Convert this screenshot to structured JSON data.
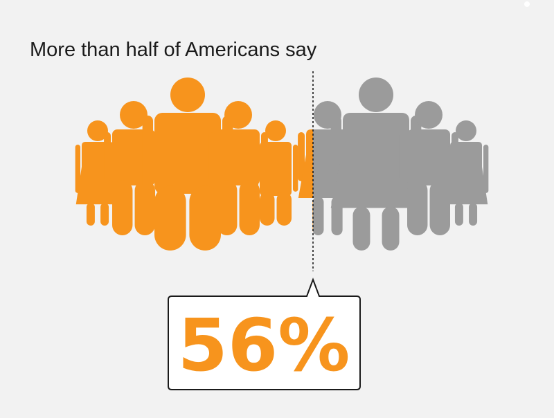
{
  "headline": "More than half of Americans say",
  "colors": {
    "background": "#f2f2f2",
    "highlight": "#f7941d",
    "muted": "#9b9b9b",
    "text": "#1a1a1a",
    "callout_border": "#1a1a1a",
    "callout_fill": "#ffffff"
  },
  "chart_data": {
    "type": "pictograph",
    "title": "More than half of Americans say",
    "value_percent": 56,
    "value_label": "56%",
    "highlight_share": 0.56,
    "icon": "person-icon"
  }
}
